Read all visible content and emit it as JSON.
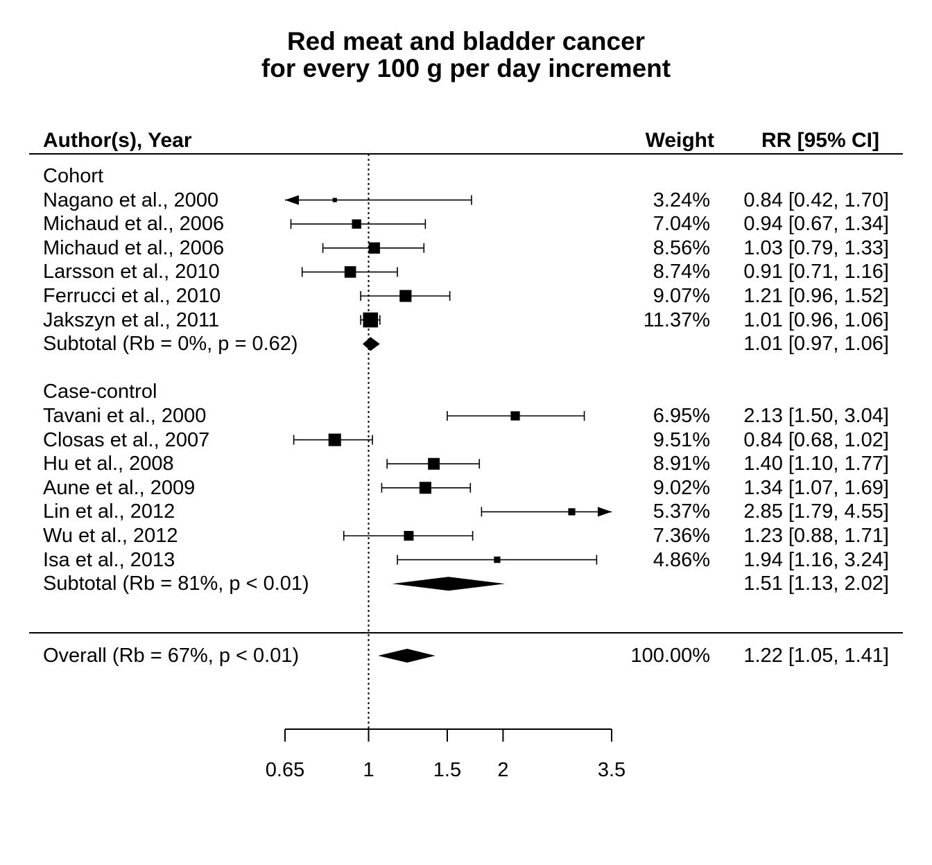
{
  "chart_data": {
    "type": "forest",
    "title": [
      "Red meat and bladder cancer",
      "for every 100 g per day increment"
    ],
    "columns": {
      "author": "Author(s), Year",
      "weight": "Weight",
      "estimate": "RR [95% CI]"
    },
    "xaxis": {
      "scale": "log",
      "min": 0.65,
      "max": 3.5,
      "ticks": [
        0.65,
        1,
        1.5,
        2,
        3.5
      ],
      "tick_labels": [
        "0.65",
        "1",
        "1.5",
        "2",
        "3.5"
      ],
      "reference": 1
    },
    "groups": [
      {
        "name": "Cohort",
        "studies": [
          {
            "label": "Nagano et al., 2000",
            "weight": "3.24%",
            "ci_text": "0.84 [0.42, 1.70]",
            "est": 0.84,
            "lo": 0.42,
            "hi": 1.7,
            "w": 3.24
          },
          {
            "label": "Michaud et al., 2006",
            "weight": "7.04%",
            "ci_text": "0.94 [0.67, 1.34]",
            "est": 0.94,
            "lo": 0.67,
            "hi": 1.34,
            "w": 7.04
          },
          {
            "label": "Michaud et al., 2006",
            "weight": "8.56%",
            "ci_text": "1.03 [0.79, 1.33]",
            "est": 1.03,
            "lo": 0.79,
            "hi": 1.33,
            "w": 8.56
          },
          {
            "label": "Larsson et al., 2010",
            "weight": "8.74%",
            "ci_text": "0.91 [0.71, 1.16]",
            "est": 0.91,
            "lo": 0.71,
            "hi": 1.16,
            "w": 8.74
          },
          {
            "label": "Ferrucci et al., 2010",
            "weight": "9.07%",
            "ci_text": "1.21 [0.96, 1.52]",
            "est": 1.21,
            "lo": 0.96,
            "hi": 1.52,
            "w": 9.07
          },
          {
            "label": "Jakszyn et al., 2011",
            "weight": "11.37%",
            "ci_text": "1.01 [0.96, 1.06]",
            "est": 1.01,
            "lo": 0.96,
            "hi": 1.06,
            "w": 11.37
          }
        ],
        "subtotal": {
          "label": "Subtotal (Rb = 0%, p = 0.62)",
          "ci_text": "1.01 [0.97, 1.06]",
          "est": 1.01,
          "lo": 0.97,
          "hi": 1.06
        }
      },
      {
        "name": "Case-control",
        "studies": [
          {
            "label": "Tavani et al., 2000",
            "weight": "6.95%",
            "ci_text": "2.13 [1.50, 3.04]",
            "est": 2.13,
            "lo": 1.5,
            "hi": 3.04,
            "w": 6.95
          },
          {
            "label": "Closas et al., 2007",
            "weight": "9.51%",
            "ci_text": "0.84 [0.68, 1.02]",
            "est": 0.84,
            "lo": 0.68,
            "hi": 1.02,
            "w": 9.51
          },
          {
            "label": "Hu et al., 2008",
            "weight": "8.91%",
            "ci_text": "1.40 [1.10, 1.77]",
            "est": 1.4,
            "lo": 1.1,
            "hi": 1.77,
            "w": 8.91
          },
          {
            "label": "Aune et al., 2009",
            "weight": "9.02%",
            "ci_text": "1.34 [1.07, 1.69]",
            "est": 1.34,
            "lo": 1.07,
            "hi": 1.69,
            "w": 9.02
          },
          {
            "label": "Lin et al., 2012",
            "weight": "5.37%",
            "ci_text": "2.85 [1.79, 4.55]",
            "est": 2.85,
            "lo": 1.79,
            "hi": 4.55,
            "w": 5.37
          },
          {
            "label": "Wu et al., 2012",
            "weight": "7.36%",
            "ci_text": "1.23 [0.88, 1.71]",
            "est": 1.23,
            "lo": 0.88,
            "hi": 1.71,
            "w": 7.36
          },
          {
            "label": "Isa et al., 2013",
            "weight": "4.86%",
            "ci_text": "1.94 [1.16, 3.24]",
            "est": 1.94,
            "lo": 1.16,
            "hi": 3.24,
            "w": 4.86
          }
        ],
        "subtotal": {
          "label": "Subtotal (Rb = 81%, p < 0.01)",
          "ci_text": "1.51 [1.13, 2.02]",
          "est": 1.51,
          "lo": 1.13,
          "hi": 2.02
        }
      }
    ],
    "overall": {
      "label": "Overall (Rb = 67%, p < 0.01)",
      "weight": "100.00%",
      "ci_text": "1.22 [1.05, 1.41]",
      "est": 1.22,
      "lo": 1.05,
      "hi": 1.41
    }
  }
}
